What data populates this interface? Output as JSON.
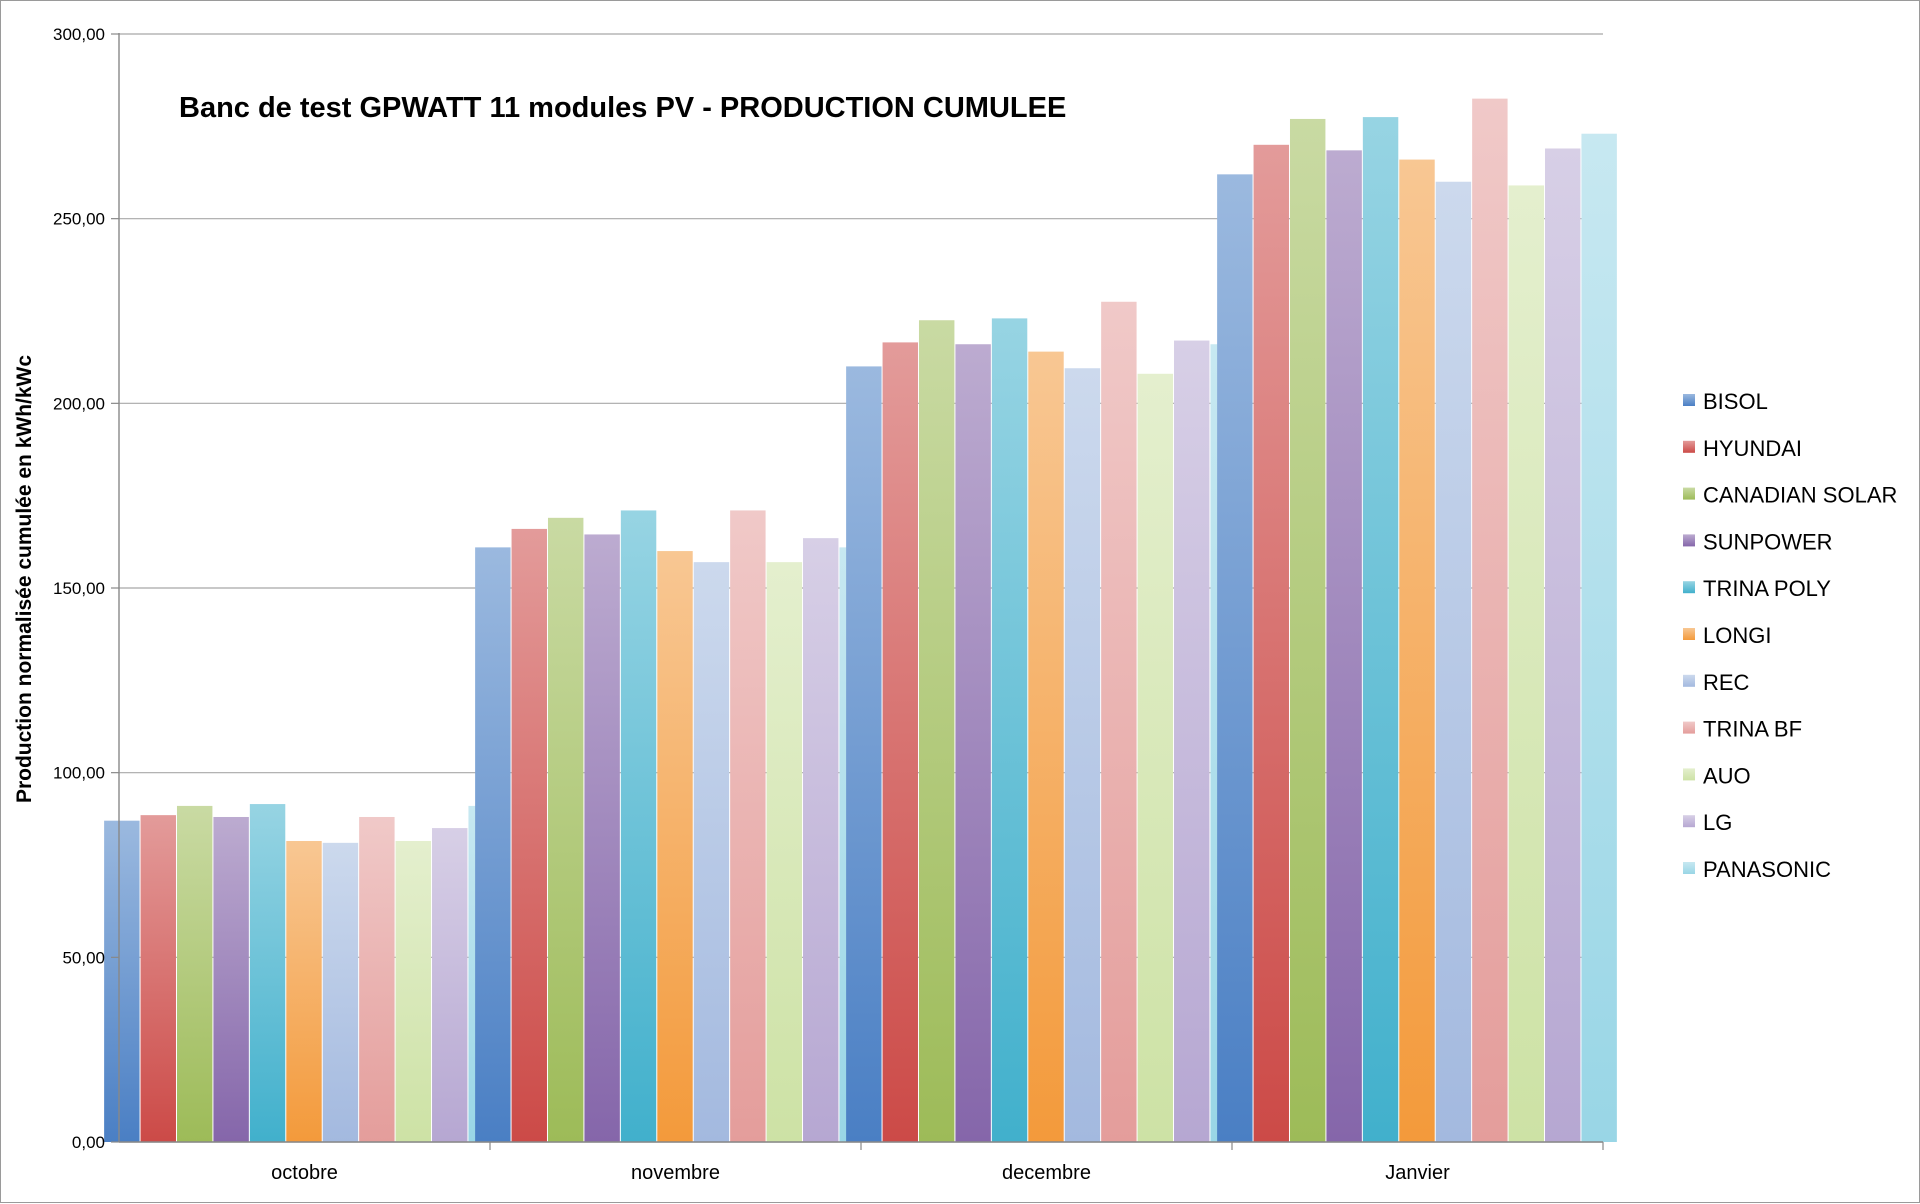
{
  "chart_data": {
    "type": "bar",
    "title": "Banc de test GPWATT 11 modules PV - PRODUCTION CUMULEE",
    "ylabel": "Production normalisée cumulée en kWh/kWc",
    "xlabel": "",
    "ylim": [
      0,
      300
    ],
    "yticks": [
      "0,00",
      "50,00",
      "100,00",
      "150,00",
      "200,00",
      "250,00",
      "300,00"
    ],
    "ytick_values": [
      0,
      50,
      100,
      150,
      200,
      250,
      300
    ],
    "grid": true,
    "legend_position": "right",
    "categories": [
      "octobre",
      "novembre",
      "decembre",
      "Janvier"
    ],
    "series": [
      {
        "name": "BISOL",
        "color": "#4a7fc4",
        "values": [
          87,
          161,
          210,
          262
        ]
      },
      {
        "name": "HYUNDAI",
        "color": "#cc4a47",
        "values": [
          88.5,
          166,
          216.5,
          270
        ]
      },
      {
        "name": "CANADIAN SOLAR",
        "color": "#9dbb58",
        "values": [
          91,
          169,
          222.5,
          277
        ]
      },
      {
        "name": "SUNPOWER",
        "color": "#8566aa",
        "values": [
          88,
          164.5,
          216,
          268.5
        ]
      },
      {
        "name": "TRINA POLY",
        "color": "#41b0cc",
        "values": [
          91.5,
          171,
          223,
          277.5
        ]
      },
      {
        "name": "LONGI",
        "color": "#f39a3b",
        "values": [
          81.5,
          160,
          214,
          266
        ]
      },
      {
        "name": "REC",
        "color": "#a3b9df",
        "values": [
          81,
          157,
          209.5,
          260
        ]
      },
      {
        "name": "TRINA BF",
        "color": "#e49d9b",
        "values": [
          88,
          171,
          227.5,
          282.5
        ]
      },
      {
        "name": "AUO",
        "color": "#cde2a5",
        "values": [
          81.5,
          157,
          208,
          259
        ]
      },
      {
        "name": "LG",
        "color": "#b6a7d2",
        "values": [
          85,
          163.5,
          217,
          269
        ]
      },
      {
        "name": "PANASONIC",
        "color": "#99d6e6",
        "values": [
          91,
          161,
          216,
          273
        ]
      }
    ]
  }
}
